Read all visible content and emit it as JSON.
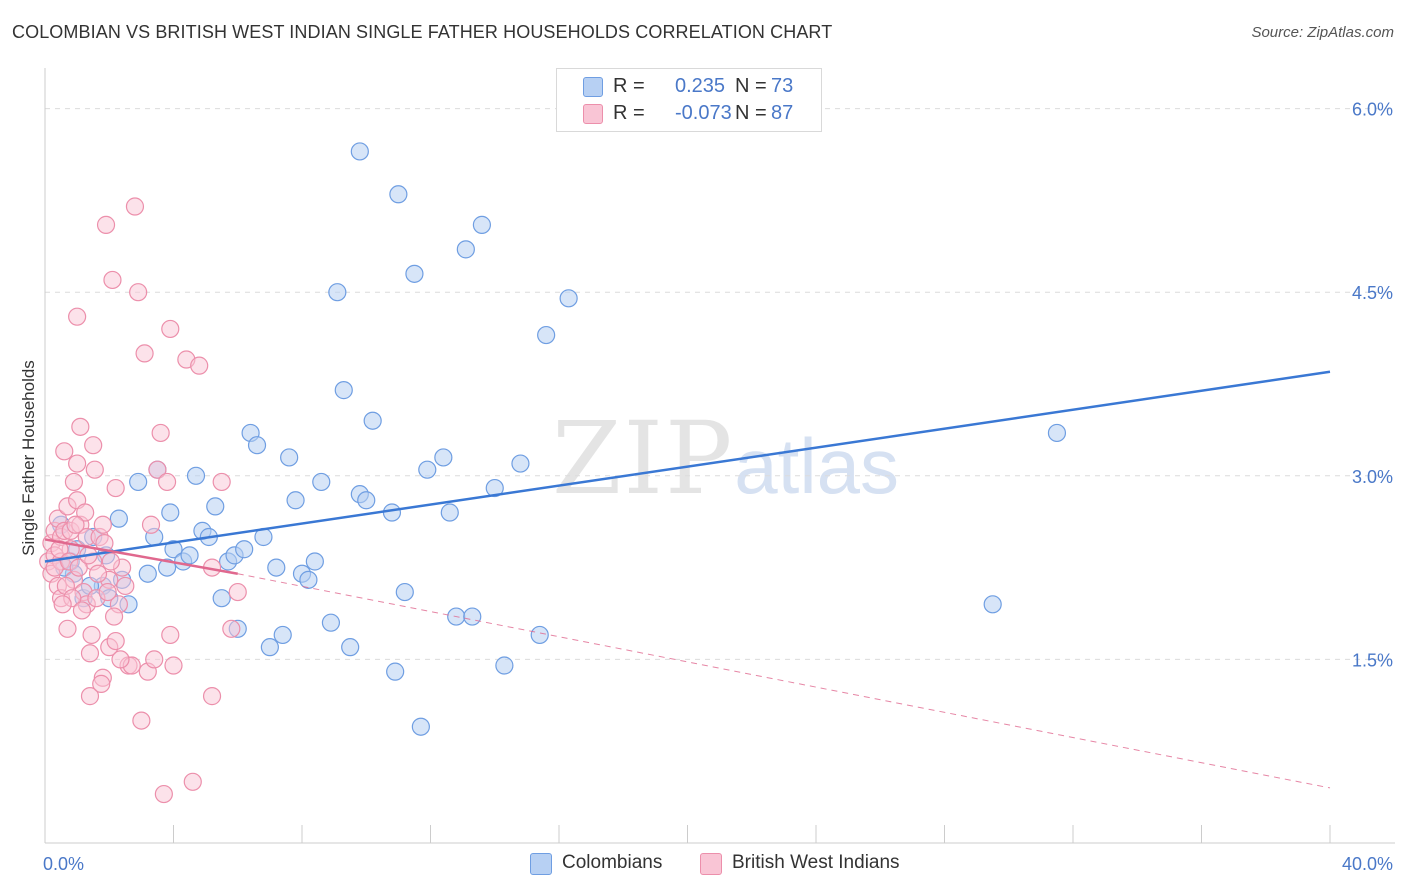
{
  "header": {
    "title": "COLOMBIAN VS BRITISH WEST INDIAN SINGLE FATHER HOUSEHOLDS CORRELATION CHART",
    "source": "Source: ZipAtlas.com"
  },
  "watermark": {
    "zip": "ZIP",
    "atlas": "atlas"
  },
  "legend": {
    "r_label": "R =",
    "n_label": "N =",
    "series": [
      {
        "name": "Colombians",
        "r": "0.235",
        "n": "73",
        "fill": "#b7d0f3",
        "stroke": "#6f9ee2"
      },
      {
        "name": "British West Indians",
        "r": "-0.073",
        "n": "87",
        "fill": "#f9c5d5",
        "stroke": "#ec8fab"
      }
    ]
  },
  "colors": {
    "blue": "#3a78d4",
    "pink": "#e0688e",
    "axis_text": "#4a78c8",
    "grid": "#dcdcdc"
  },
  "chart_data": {
    "type": "scatter",
    "title": "COLOMBIAN VS BRITISH WEST INDIAN SINGLE FATHER HOUSEHOLDS CORRELATION CHART",
    "xlabel": "",
    "ylabel": "Single Father Households",
    "xlim": [
      0,
      40
    ],
    "ylim": [
      0,
      6.25
    ],
    "x_tick_labels": [
      "0.0%",
      "40.0%"
    ],
    "y_ticks": [
      1.5,
      3.0,
      4.5,
      6.0
    ],
    "y_tick_labels": [
      "1.5%",
      "3.0%",
      "4.5%",
      "6.0%"
    ],
    "grid": true,
    "series": [
      {
        "name": "Colombians",
        "r": 0.235,
        "n": 73,
        "trend": {
          "x": [
            0,
            40
          ],
          "y": [
            2.3,
            3.85
          ]
        },
        "points": [
          [
            0.5,
            2.6
          ],
          [
            0.8,
            2.3
          ],
          [
            0.9,
            2.2
          ],
          [
            1.0,
            2.4
          ],
          [
            1.2,
            2.0
          ],
          [
            1.5,
            2.5
          ],
          [
            1.8,
            2.1
          ],
          [
            1.9,
            2.35
          ],
          [
            2.0,
            2.0
          ],
          [
            2.3,
            2.65
          ],
          [
            2.4,
            2.15
          ],
          [
            2.6,
            1.95
          ],
          [
            2.9,
            2.95
          ],
          [
            3.2,
            2.2
          ],
          [
            3.4,
            2.5
          ],
          [
            3.5,
            3.05
          ],
          [
            3.8,
            2.25
          ],
          [
            3.9,
            2.7
          ],
          [
            4.0,
            2.4
          ],
          [
            4.3,
            2.3
          ],
          [
            4.5,
            2.35
          ],
          [
            4.7,
            3.0
          ],
          [
            4.9,
            2.55
          ],
          [
            5.1,
            2.5
          ],
          [
            5.3,
            2.75
          ],
          [
            5.5,
            2.0
          ],
          [
            5.7,
            2.3
          ],
          [
            5.9,
            2.35
          ],
          [
            6.0,
            1.75
          ],
          [
            6.2,
            2.4
          ],
          [
            6.4,
            3.35
          ],
          [
            6.6,
            3.25
          ],
          [
            6.8,
            2.5
          ],
          [
            7.0,
            1.6
          ],
          [
            7.2,
            2.25
          ],
          [
            7.4,
            1.7
          ],
          [
            7.6,
            3.15
          ],
          [
            7.8,
            2.8
          ],
          [
            8.0,
            2.2
          ],
          [
            8.2,
            2.15
          ],
          [
            8.4,
            2.3
          ],
          [
            8.6,
            2.95
          ],
          [
            8.9,
            1.8
          ],
          [
            9.1,
            4.5
          ],
          [
            9.3,
            3.7
          ],
          [
            9.5,
            1.6
          ],
          [
            9.8,
            2.85
          ],
          [
            10.0,
            2.8
          ],
          [
            10.2,
            3.45
          ],
          [
            10.8,
            2.7
          ],
          [
            10.9,
            1.4
          ],
          [
            11.0,
            5.3
          ],
          [
            11.2,
            2.05
          ],
          [
            11.5,
            4.65
          ],
          [
            11.7,
            0.95
          ],
          [
            11.9,
            3.05
          ],
          [
            12.4,
            3.15
          ],
          [
            12.6,
            2.7
          ],
          [
            12.8,
            1.85
          ],
          [
            13.1,
            4.85
          ],
          [
            13.3,
            1.85
          ],
          [
            13.6,
            5.05
          ],
          [
            14.0,
            2.9
          ],
          [
            14.3,
            1.45
          ],
          [
            14.8,
            3.1
          ],
          [
            15.4,
            1.7
          ],
          [
            15.6,
            4.15
          ],
          [
            16.3,
            4.45
          ],
          [
            29.5,
            1.95
          ],
          [
            31.5,
            3.35
          ],
          [
            9.8,
            5.65
          ],
          [
            0.6,
            2.25
          ],
          [
            1.4,
            2.1
          ]
        ]
      },
      {
        "name": "British West Indians",
        "r": -0.073,
        "n": 87,
        "trend": {
          "x": [
            0,
            6
          ],
          "y": [
            2.48,
            2.2
          ],
          "dashed_extension": {
            "x": [
              6,
              40
            ],
            "y": [
              2.2,
              0.45
            ]
          }
        },
        "points": [
          [
            0.1,
            2.3
          ],
          [
            0.2,
            2.45
          ],
          [
            0.2,
            2.2
          ],
          [
            0.3,
            2.55
          ],
          [
            0.3,
            2.35
          ],
          [
            0.4,
            2.1
          ],
          [
            0.4,
            2.65
          ],
          [
            0.5,
            2.5
          ],
          [
            0.5,
            2.0
          ],
          [
            0.5,
            2.3
          ],
          [
            0.6,
            2.55
          ],
          [
            0.6,
            3.2
          ],
          [
            0.7,
            2.75
          ],
          [
            0.7,
            1.75
          ],
          [
            0.8,
            2.55
          ],
          [
            0.8,
            2.4
          ],
          [
            0.9,
            2.95
          ],
          [
            0.9,
            2.15
          ],
          [
            1.0,
            2.8
          ],
          [
            1.0,
            4.3
          ],
          [
            1.0,
            3.1
          ],
          [
            1.1,
            3.4
          ],
          [
            1.1,
            2.6
          ],
          [
            1.2,
            2.05
          ],
          [
            1.3,
            2.5
          ],
          [
            1.3,
            1.95
          ],
          [
            1.4,
            1.55
          ],
          [
            1.4,
            1.2
          ],
          [
            1.5,
            2.3
          ],
          [
            1.5,
            3.25
          ],
          [
            1.6,
            2.0
          ],
          [
            1.7,
            2.5
          ],
          [
            1.8,
            2.6
          ],
          [
            1.8,
            1.35
          ],
          [
            1.9,
            5.05
          ],
          [
            2.0,
            2.15
          ],
          [
            2.0,
            1.6
          ],
          [
            2.1,
            4.6
          ],
          [
            2.2,
            2.9
          ],
          [
            2.2,
            1.65
          ],
          [
            2.3,
            1.95
          ],
          [
            2.4,
            2.25
          ],
          [
            2.5,
            2.1
          ],
          [
            2.6,
            1.45
          ],
          [
            2.8,
            5.2
          ],
          [
            2.9,
            4.5
          ],
          [
            3.0,
            1.0
          ],
          [
            3.1,
            4.0
          ],
          [
            3.2,
            1.4
          ],
          [
            3.3,
            2.6
          ],
          [
            3.4,
            1.5
          ],
          [
            3.5,
            3.05
          ],
          [
            3.6,
            3.35
          ],
          [
            3.8,
            2.95
          ],
          [
            3.9,
            4.2
          ],
          [
            4.0,
            1.45
          ],
          [
            4.4,
            3.95
          ],
          [
            4.6,
            0.5
          ],
          [
            4.8,
            3.9
          ],
          [
            5.2,
            2.25
          ],
          [
            5.5,
            2.95
          ],
          [
            5.8,
            1.75
          ],
          [
            6.0,
            2.05
          ],
          [
            5.2,
            1.2
          ],
          [
            3.7,
            0.4
          ],
          [
            3.9,
            1.7
          ],
          [
            2.7,
            1.45
          ],
          [
            0.3,
            2.25
          ],
          [
            0.45,
            2.4
          ],
          [
            0.65,
            2.1
          ],
          [
            0.75,
            2.3
          ],
          [
            0.85,
            2.0
          ],
          [
            1.05,
            2.25
          ],
          [
            1.15,
            1.9
          ],
          [
            1.25,
            2.7
          ],
          [
            1.35,
            2.35
          ],
          [
            1.45,
            1.7
          ],
          [
            1.55,
            3.05
          ],
          [
            1.65,
            2.2
          ],
          [
            1.75,
            1.3
          ],
          [
            1.85,
            2.45
          ],
          [
            1.95,
            2.05
          ],
          [
            2.05,
            2.3
          ],
          [
            2.15,
            1.85
          ],
          [
            2.35,
            1.5
          ],
          [
            0.55,
            1.95
          ],
          [
            0.95,
            2.6
          ]
        ]
      }
    ]
  }
}
